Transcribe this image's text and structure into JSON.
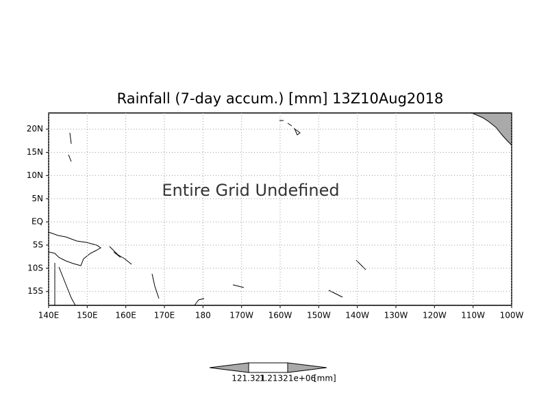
{
  "map": {
    "title": "Rainfall (7-day accum.) [mm] 13Z10Aug2018",
    "annotation": "Entire Grid Undefined",
    "xlim": [
      140,
      260
    ],
    "ylim": [
      -18,
      23.5
    ],
    "xticks": [
      {
        "value": 140,
        "label": "140E"
      },
      {
        "value": 150,
        "label": "150E"
      },
      {
        "value": 160,
        "label": "160E"
      },
      {
        "value": 170,
        "label": "170E"
      },
      {
        "value": 180,
        "label": "180"
      },
      {
        "value": 190,
        "label": "170W"
      },
      {
        "value": 200,
        "label": "160W"
      },
      {
        "value": 210,
        "label": "150W"
      },
      {
        "value": 220,
        "label": "140W"
      },
      {
        "value": 230,
        "label": "130W"
      },
      {
        "value": 240,
        "label": "120W"
      },
      {
        "value": 250,
        "label": "110W"
      },
      {
        "value": 260,
        "label": "100W"
      }
    ],
    "yticks": [
      {
        "value": 20,
        "label": "20N"
      },
      {
        "value": 15,
        "label": "15N"
      },
      {
        "value": 10,
        "label": "10N"
      },
      {
        "value": 5,
        "label": "5N"
      },
      {
        "value": 0,
        "label": "EQ"
      },
      {
        "value": -5,
        "label": "5S"
      },
      {
        "value": -10,
        "label": "10S"
      },
      {
        "value": -15,
        "label": "15S"
      }
    ],
    "grid": true,
    "colorbar": {
      "labels": [
        "121.321",
        "1.21321e+06"
      ],
      "unit": "[mm]"
    }
  }
}
